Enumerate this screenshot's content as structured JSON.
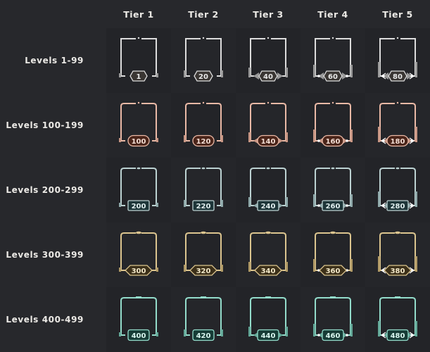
{
  "tiers": [
    "Tier 1",
    "Tier 2",
    "Tier 3",
    "Tier 4",
    "Tier 5"
  ],
  "rows": [
    {
      "label": "Levels 1-99",
      "levels": [
        "1",
        "20",
        "40",
        "60",
        "80"
      ],
      "colors": {
        "frame": "#dcdcdc",
        "accent": "#9a9a9a",
        "fill": "#3a3633",
        "text": "#e8e8e8"
      },
      "badge": "hexagon"
    },
    {
      "label": "Levels 100-199",
      "levels": [
        "100",
        "120",
        "140",
        "160",
        "180"
      ],
      "colors": {
        "frame": "#eab9a6",
        "accent": "#c89684",
        "fill": "#4a2419",
        "text": "#f3ddd3"
      },
      "badge": "pill"
    },
    {
      "label": "Levels 200-299",
      "levels": [
        "200",
        "220",
        "240",
        "260",
        "280"
      ],
      "colors": {
        "frame": "#bcd2d2",
        "accent": "#8fa9aa",
        "fill": "#1d3538",
        "text": "#e0eeee"
      },
      "badge": "rectangle"
    },
    {
      "label": "Levels 300-399",
      "levels": [
        "300",
        "320",
        "340",
        "360",
        "380"
      ],
      "colors": {
        "frame": "#dcc58f",
        "accent": "#b19a66",
        "fill": "#3c3019",
        "text": "#f3e8c8"
      },
      "badge": "diamond"
    },
    {
      "label": "Levels 400-499",
      "levels": [
        "400",
        "420",
        "440",
        "460",
        "480"
      ],
      "colors": {
        "frame": "#93dccb",
        "accent": "#63a898",
        "fill": "#163c36",
        "text": "#d8f5ee"
      },
      "badge": "rounded-rectangle"
    }
  ],
  "background": "#27282c"
}
